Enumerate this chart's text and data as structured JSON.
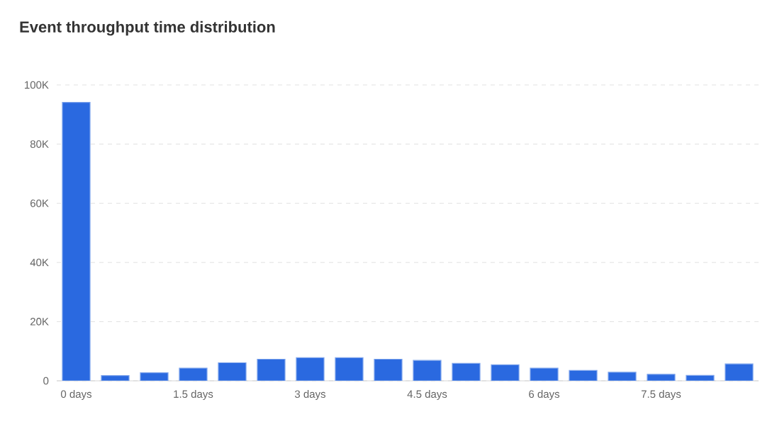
{
  "chart_data": {
    "type": "bar",
    "title": "Event throughput time distribution",
    "categories": [
      "0 days",
      null,
      null,
      "1.5 days",
      null,
      null,
      "3 days",
      null,
      null,
      "4.5 days",
      null,
      null,
      "6 days",
      null,
      null,
      "7.5 days",
      null,
      null
    ],
    "values": [
      94100,
      1750,
      2700,
      4300,
      6100,
      7300,
      7800,
      7800,
      7300,
      6900,
      5900,
      5400,
      4300,
      3500,
      2900,
      2200,
      1800,
      5700
    ],
    "color": "#2a69e0",
    "ylim": [
      0,
      100000
    ],
    "yticks": [
      {
        "value": 0,
        "label": "0"
      },
      {
        "value": 20000,
        "label": "20K"
      },
      {
        "value": 40000,
        "label": "40K"
      },
      {
        "value": 60000,
        "label": "60K"
      },
      {
        "value": 80000,
        "label": "80K"
      },
      {
        "value": 100000,
        "label": "100K"
      }
    ],
    "grid": "y"
  }
}
